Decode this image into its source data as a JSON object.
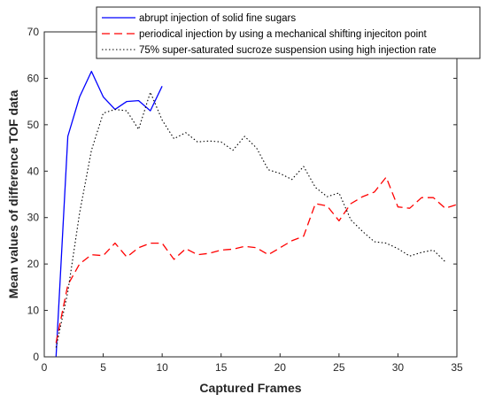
{
  "chart_data": {
    "type": "line",
    "xlabel": "Captured Frames",
    "ylabel": "Mean values of difference TOF data",
    "xlim": [
      0,
      35
    ],
    "ylim": [
      0,
      70
    ],
    "xticks": [
      0,
      5,
      10,
      15,
      20,
      25,
      30,
      35
    ],
    "yticks": [
      0,
      10,
      20,
      30,
      40,
      50,
      60,
      70
    ],
    "grid": false,
    "legend_position": "top-right",
    "series": [
      {
        "name": "abrupt injection of solid fine sugars",
        "color": "#0000ff",
        "style": "solid",
        "x": [
          1,
          2,
          3,
          4,
          5,
          6,
          7,
          8,
          9,
          10
        ],
        "y": [
          0,
          47.5,
          56,
          61.5,
          56,
          53.3,
          55,
          55.2,
          53,
          58.3
        ]
      },
      {
        "name": "periodical injection by using a mechanical shifting injeciton point",
        "color": "#ff0000",
        "style": "dashed",
        "x": [
          1,
          2,
          3,
          4,
          5,
          6,
          7,
          8,
          9,
          10,
          11,
          12,
          13,
          14,
          15,
          16,
          17,
          18,
          19,
          20,
          21,
          22,
          23,
          24,
          25,
          26,
          27,
          28,
          29,
          30,
          31,
          32,
          33,
          34,
          35
        ],
        "y": [
          3,
          15.5,
          20,
          22,
          21.8,
          24.5,
          21.5,
          23.5,
          24.5,
          24.5,
          21,
          23.3,
          22,
          22.3,
          23,
          23.2,
          23.8,
          23.5,
          22,
          23.5,
          25,
          26,
          33,
          32.5,
          29.3,
          33,
          34.5,
          35.5,
          38.7,
          32.3,
          32,
          34.3,
          34.3,
          32,
          32.8
        ]
      },
      {
        "name": "75% super-saturated sucroze suspension using high injection rate",
        "color": "#000000",
        "style": "dotted",
        "x": [
          1,
          2,
          3,
          4,
          5,
          6,
          7,
          8,
          9,
          10,
          11,
          12,
          13,
          14,
          15,
          16,
          17,
          18,
          19,
          20,
          21,
          22,
          23,
          24,
          25,
          26,
          27,
          28,
          29,
          30,
          31,
          32,
          33,
          34
        ],
        "y": [
          2,
          14,
          31,
          44.5,
          52.5,
          53.3,
          53,
          49,
          57,
          51,
          47,
          48.3,
          46.3,
          46.5,
          46.3,
          44.5,
          47.5,
          45,
          40.3,
          39.5,
          38.2,
          41,
          36.5,
          34.5,
          35.3,
          29.5,
          27,
          24.8,
          24.5,
          23.3,
          21.7,
          22.5,
          23,
          20.5
        ]
      }
    ]
  }
}
